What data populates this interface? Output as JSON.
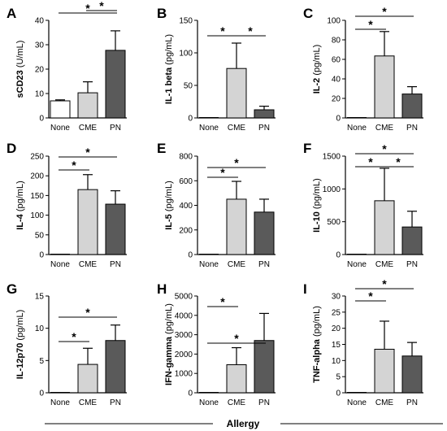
{
  "footer": {
    "label": "Allergy"
  },
  "colors": {
    "None": "#ffffff",
    "CME": "#d4d4d4",
    "PN": "#5a5a5a"
  },
  "chart_data": [
    {
      "type": "bar",
      "panel": "A",
      "ylabel": "sCD23 (U/mL)",
      "ylabel_mixed": [
        {
          "t": "sCD23",
          "b": true
        },
        {
          "t": " (U/mL)",
          "b": false
        }
      ],
      "categories": [
        "None",
        "CME",
        "PN"
      ],
      "values": [
        7,
        10.3,
        27.7
      ],
      "errors": [
        0.4,
        4.5,
        8.0
      ],
      "ylim": [
        0,
        40
      ],
      "yticks": [
        0,
        10,
        20,
        30,
        40
      ],
      "significance": [
        {
          "from": 1,
          "to": 2,
          "label": "*"
        },
        {
          "from": 0,
          "to": 2,
          "label": "*"
        }
      ]
    },
    {
      "type": "bar",
      "panel": "B",
      "ylabel": "IL-1 beta (pg/mL)",
      "ylabel_mixed": [
        {
          "t": "IL-1 beta",
          "b": true
        },
        {
          "t": " (pg/mL)",
          "b": false
        }
      ],
      "categories": [
        "None",
        "CME",
        "PN"
      ],
      "values": [
        0,
        76,
        12.5
      ],
      "errors": [
        0,
        39,
        5.5
      ],
      "ylim": [
        0,
        150
      ],
      "yticks": [
        0,
        50,
        100,
        150
      ],
      "significance": [
        {
          "from": 0,
          "to": 1,
          "label": "*"
        },
        {
          "from": 1,
          "to": 2,
          "label": "*"
        }
      ]
    },
    {
      "type": "bar",
      "panel": "C",
      "ylabel": "IL-2 (pg/mL)",
      "ylabel_mixed": [
        {
          "t": "IL-2",
          "b": true
        },
        {
          "t": " (pg/mL)",
          "b": false
        }
      ],
      "categories": [
        "None",
        "CME",
        "PN"
      ],
      "values": [
        0,
        63.5,
        24.5
      ],
      "errors": [
        0,
        25,
        7.5
      ],
      "ylim": [
        0,
        100
      ],
      "yticks": [
        0,
        20,
        40,
        60,
        80,
        100
      ],
      "significance": [
        {
          "from": 0,
          "to": 1,
          "label": "*"
        },
        {
          "from": 0,
          "to": 2,
          "label": "*"
        }
      ]
    },
    {
      "type": "bar",
      "panel": "D",
      "ylabel": "IL-4 (pg/mL)",
      "ylabel_mixed": [
        {
          "t": "IL-4",
          "b": true
        },
        {
          "t": " (pg/mL)",
          "b": false
        }
      ],
      "categories": [
        "None",
        "CME",
        "PN"
      ],
      "values": [
        0,
        165,
        128
      ],
      "errors": [
        0,
        38,
        34
      ],
      "ylim": [
        0,
        250
      ],
      "yticks": [
        0,
        50,
        100,
        150,
        200,
        250
      ],
      "significance": [
        {
          "from": 0,
          "to": 1,
          "label": "*"
        },
        {
          "from": 0,
          "to": 2,
          "label": "*"
        }
      ]
    },
    {
      "type": "bar",
      "panel": "E",
      "ylabel": "IL-5 (pg/mL)",
      "ylabel_mixed": [
        {
          "t": "IL-5",
          "b": true
        },
        {
          "t": " (pg/mL)",
          "b": false
        }
      ],
      "categories": [
        "None",
        "CME",
        "PN"
      ],
      "values": [
        0,
        450,
        345
      ],
      "errors": [
        0,
        145,
        105
      ],
      "ylim": [
        0,
        800
      ],
      "yticks": [
        0,
        200,
        400,
        600,
        800
      ],
      "significance": [
        {
          "from": 0,
          "to": 1,
          "label": "*"
        },
        {
          "from": 0,
          "to": 2,
          "label": "*"
        }
      ]
    },
    {
      "type": "bar",
      "panel": "F",
      "ylabel": "IL-10 (pg/mL)",
      "ylabel_mixed": [
        {
          "t": "IL-10",
          "b": true
        },
        {
          "t": " (pg/mL)",
          "b": false
        }
      ],
      "categories": [
        "None",
        "CME",
        "PN"
      ],
      "values": [
        0,
        820,
        420
      ],
      "errors": [
        0,
        495,
        240
      ],
      "ylim": [
        0,
        1500
      ],
      "yticks": [
        0,
        500,
        1000,
        1500
      ],
      "significance": [
        {
          "from": 0,
          "to": 1,
          "label": "*"
        },
        {
          "from": 1,
          "to": 2,
          "label": "*"
        },
        {
          "from": 0,
          "to": 2,
          "label": "*"
        }
      ]
    },
    {
      "type": "bar",
      "panel": "G",
      "ylabel": "IL-12p70 (pg/mL)",
      "ylabel_mixed": [
        {
          "t": "IL-12p70",
          "b": true
        },
        {
          "t": " (pg/mL)",
          "b": false
        }
      ],
      "categories": [
        "None",
        "CME",
        "PN"
      ],
      "values": [
        0,
        4.4,
        8.1
      ],
      "errors": [
        0,
        2.5,
        2.4
      ],
      "ylim": [
        0,
        15
      ],
      "yticks": [
        0,
        5,
        10,
        15
      ],
      "significance": [
        {
          "from": 0,
          "to": 1,
          "label": "*"
        },
        {
          "from": 0,
          "to": 2,
          "label": "*"
        }
      ]
    },
    {
      "type": "bar",
      "panel": "H",
      "ylabel": "IFN-gamma (pg/mL)",
      "ylabel_mixed": [
        {
          "t": "IFN-gamma",
          "b": true
        },
        {
          "t": " (pg/mL)",
          "b": false
        }
      ],
      "categories": [
        "None",
        "CME",
        "PN"
      ],
      "values": [
        0,
        1450,
        2700
      ],
      "errors": [
        0,
        880,
        1400
      ],
      "ylim": [
        0,
        5000
      ],
      "yticks": [
        0,
        1000,
        2000,
        3000,
        4000,
        5000
      ],
      "significance": [
        {
          "from": 0,
          "to": 1,
          "label": "*"
        },
        {
          "from": 0,
          "to": 2,
          "label": "*"
        }
      ]
    },
    {
      "type": "bar",
      "panel": "I",
      "ylabel": "TNF-alpha (pg/mL)",
      "ylabel_mixed": [
        {
          "t": "TNF-alpha",
          "b": true
        },
        {
          "t": " (pg/mL)",
          "b": false
        }
      ],
      "categories": [
        "None",
        "CME",
        "PN"
      ],
      "values": [
        0,
        13.5,
        11.4
      ],
      "errors": [
        0,
        8.7,
        4.2
      ],
      "ylim": [
        0,
        30
      ],
      "yticks": [
        0,
        5,
        10,
        15,
        20,
        25,
        30
      ],
      "significance": [
        {
          "from": 0,
          "to": 1,
          "label": "*"
        },
        {
          "from": 0,
          "to": 2,
          "label": "*"
        }
      ]
    }
  ]
}
